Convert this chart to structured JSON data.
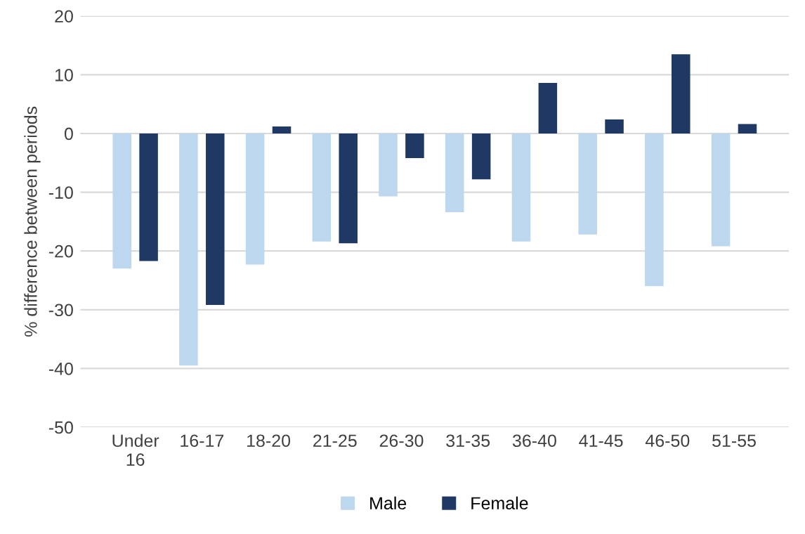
{
  "chart_data": {
    "type": "bar",
    "ylabel": "% difference between periods",
    "categories": [
      "Under\n16",
      "16-17",
      "18-20",
      "21-25",
      "26-30",
      "31-35",
      "36-40",
      "41-45",
      "46-50",
      "51-55"
    ],
    "series": [
      {
        "name": "Male",
        "color": "#bdd7ee",
        "values": [
          -23,
          -39.5,
          -22.3,
          -18.4,
          -10.7,
          -13.4,
          -18.4,
          -17.2,
          -26,
          -19.2
        ]
      },
      {
        "name": "Female",
        "color": "#1f3864",
        "values": [
          -21.7,
          -29.2,
          1.2,
          -18.7,
          -4.2,
          -7.8,
          8.6,
          2.4,
          13.5,
          1.6
        ]
      }
    ],
    "ylim": [
      -50,
      20
    ],
    "yticks": [
      -50,
      -40,
      -30,
      -20,
      -10,
      0,
      10,
      20
    ],
    "grid": "y",
    "legend": "bottom"
  }
}
